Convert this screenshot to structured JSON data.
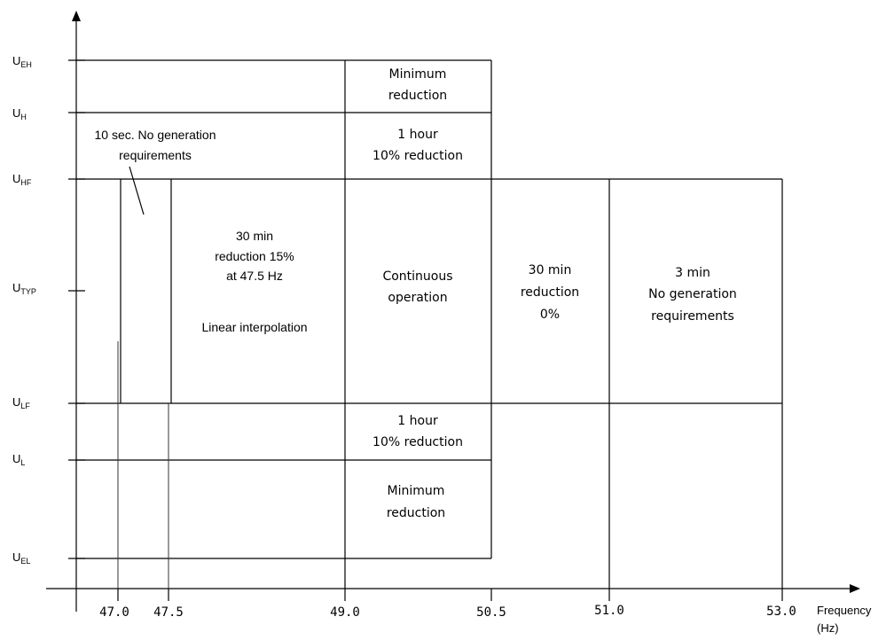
{
  "diagram": {
    "y_levels": [
      {
        "main": "U",
        "sub": "EH"
      },
      {
        "main": "U",
        "sub": "H"
      },
      {
        "main": "U",
        "sub": "HF"
      },
      {
        "main": "U",
        "sub": "TYP"
      },
      {
        "main": "U",
        "sub": "LF"
      },
      {
        "main": "U",
        "sub": "L"
      },
      {
        "main": "U",
        "sub": "EL"
      }
    ],
    "x_ticks": [
      "47.0",
      "47.5",
      "49.0",
      "50.5",
      "51.0",
      "53.0"
    ],
    "x_axis_label": [
      "Frequency",
      "(Hz)"
    ],
    "cells": {
      "top_min": [
        "Minimum",
        "reduction"
      ],
      "top_1h": [
        "1 hour",
        "10% reduction"
      ],
      "ten_sec": [
        "10 sec. No generation",
        "requirements"
      ],
      "thirty_min_low": [
        "30 min",
        "reduction 15%",
        "at 47.5 Hz"
      ],
      "linear": "Linear interpolation",
      "continuous": [
        "Continuous",
        "operation"
      ],
      "thirty_min_high": [
        "30 min",
        "reduction",
        "0%"
      ],
      "three_min": [
        "3 min",
        "No generation",
        "requirements"
      ],
      "bottom_1h": [
        "1 hour",
        "10% reduction"
      ],
      "bottom_min": [
        "Minimum",
        "reduction"
      ]
    }
  }
}
